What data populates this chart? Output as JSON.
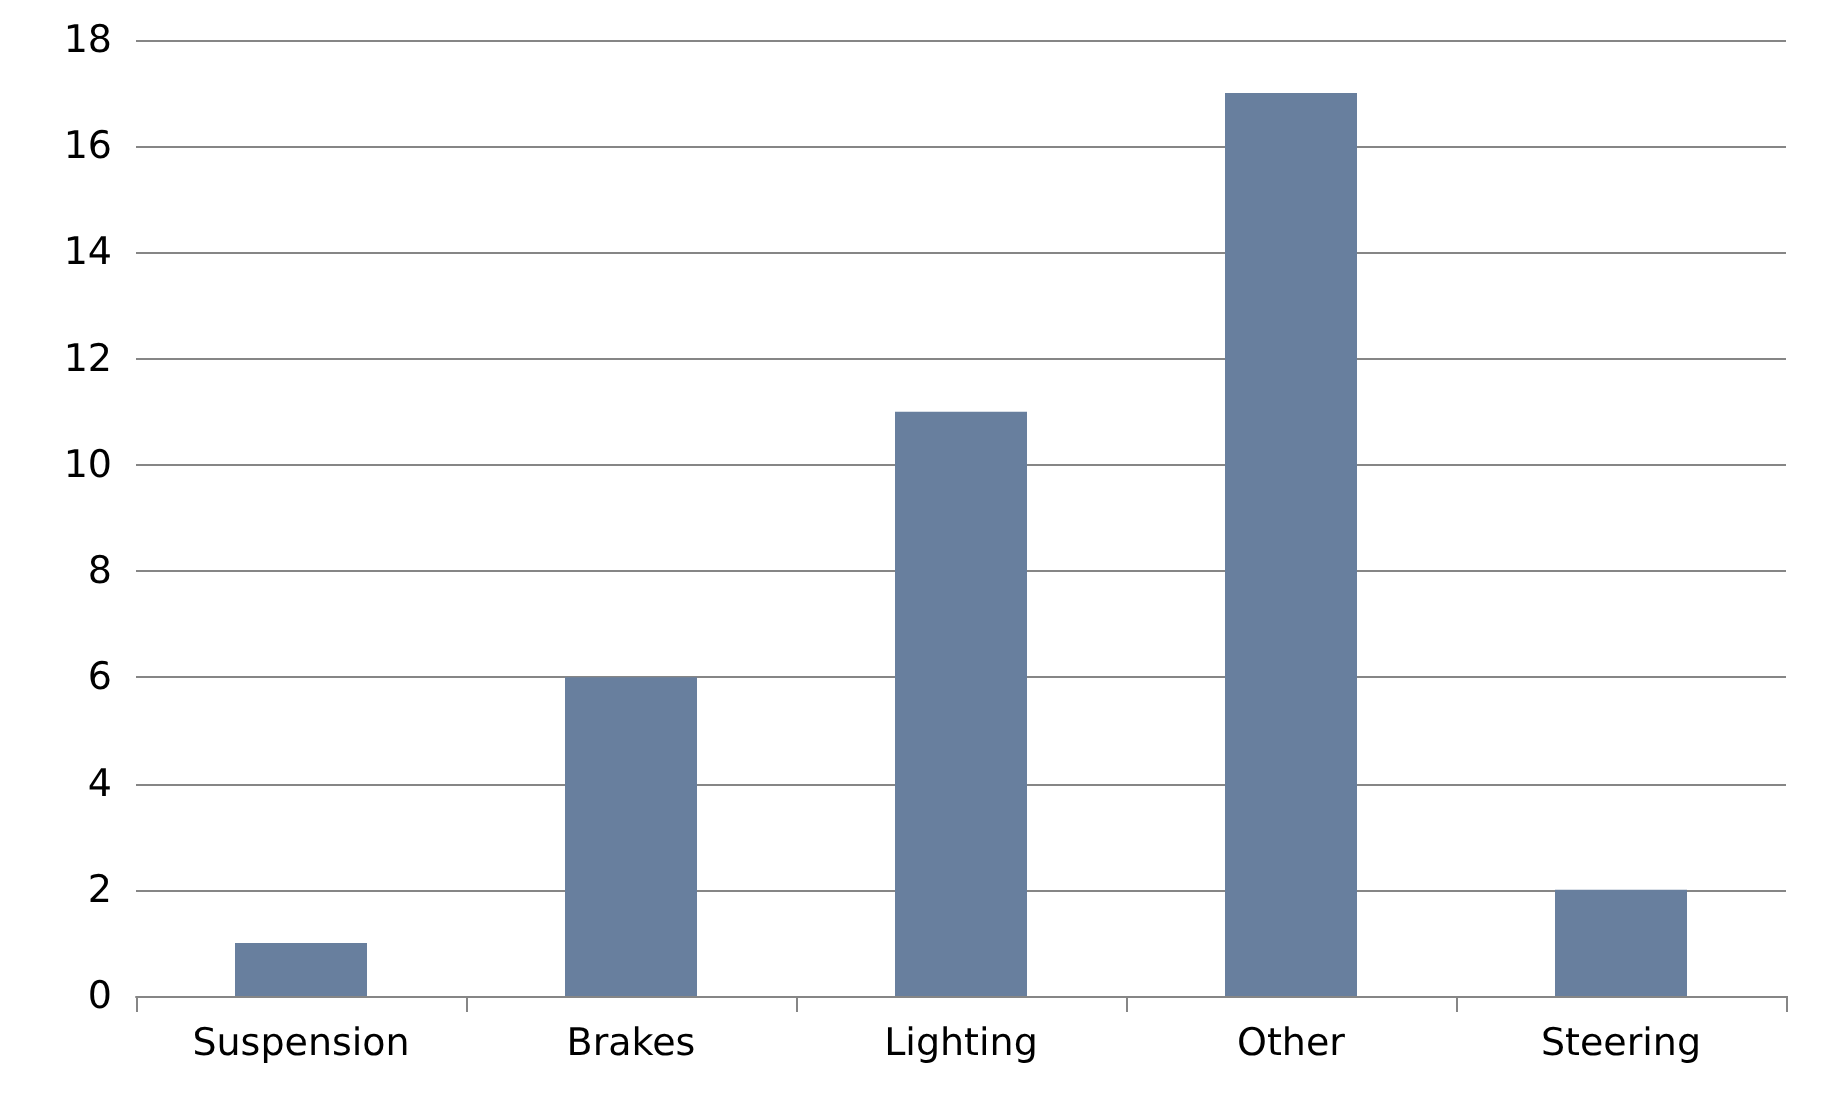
{
  "chart_data": {
    "type": "bar",
    "categories": [
      "Suspension",
      "Brakes",
      "Lighting",
      "Other",
      "Steering"
    ],
    "values": [
      1,
      6,
      11,
      17,
      2
    ],
    "color": "#687f9e",
    "ylim": [
      0,
      18
    ],
    "yticks": [
      0,
      2,
      4,
      6,
      8,
      10,
      12,
      14,
      16,
      18
    ],
    "grid": "y"
  }
}
